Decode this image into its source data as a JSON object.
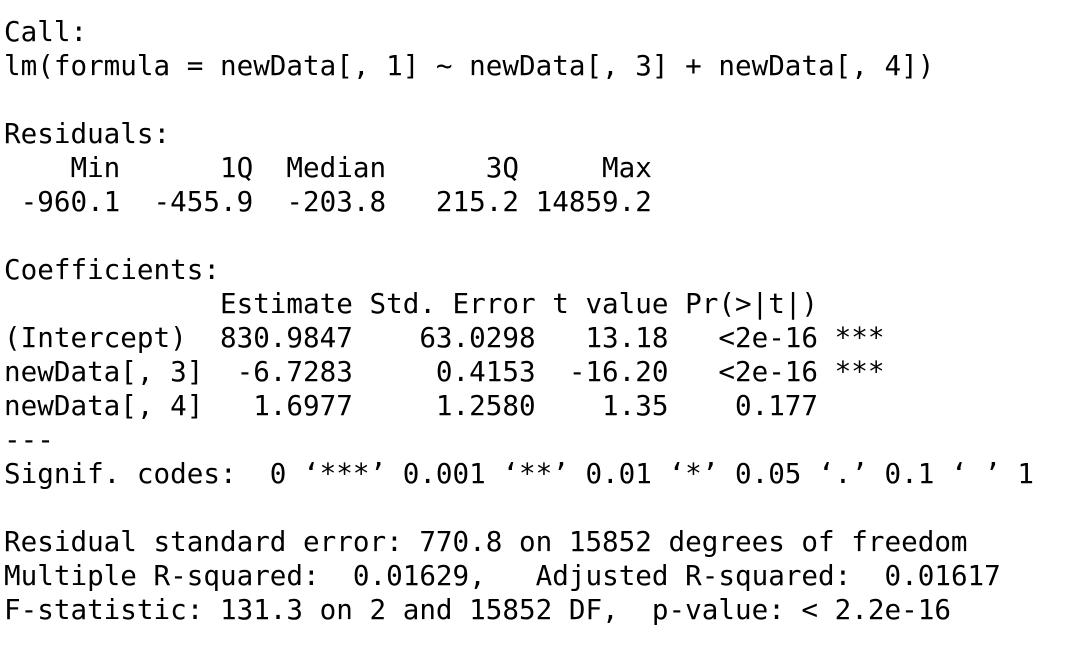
{
  "output": {
    "call_header": "Call:",
    "call_formula": "lm(formula = newData[, 1] ~ newData[, 3] + newData[, 4])",
    "blank_1": "",
    "residuals_header": "Residuals:",
    "residuals_labels": "    Min      1Q  Median      3Q     Max ",
    "residuals_values": " -960.1  -455.9  -203.8   215.2 14859.2 ",
    "blank_2": "",
    "coefficients_header": "Coefficients:",
    "coef_columns": "             Estimate Std. Error t value Pr(>|t|)    ",
    "coef_row_intercept": "(Intercept)  830.9847    63.0298   13.18   <2e-16 ***",
    "coef_row_x3": "newData[, 3]  -6.7283     0.4153  -16.20   <2e-16 ***",
    "coef_row_x4": "newData[, 4]   1.6977     1.2580    1.35    0.177    ",
    "separator": "---",
    "signif_codes": "Signif. codes:  0 ‘***’ 0.001 ‘**’ 0.01 ‘*’ 0.05 ‘.’ 0.1 ‘ ’ 1",
    "blank_3": "",
    "residual_se": "Residual standard error: 770.8 on 15852 degrees of freedom",
    "r_squared": "Multiple R-squared:  0.01629,\tAdjusted R-squared:  0.01617 ",
    "f_statistic": "F-statistic: 131.3 on 2 and 15852 DF,  p-value: < 2.2e-16"
  }
}
